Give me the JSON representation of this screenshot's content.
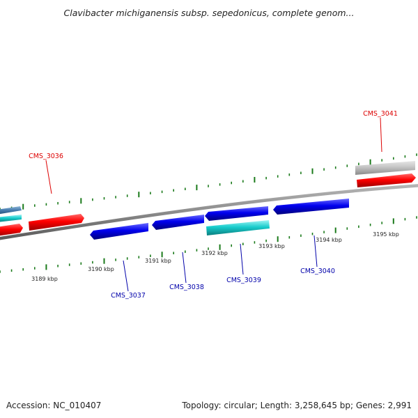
{
  "title": "Clavibacter michiganensis subsp. sepedonicus, complete genom...",
  "footer": {
    "accession": "Accession: NC_010407",
    "stats": "Topology: circular; Length: 3,258,645 bp; Genes: 2,991"
  },
  "colors": {
    "backbone": "#8c8c8c",
    "forward_gene": "#ff0000",
    "reverse_gene": "#0000ee",
    "rna_gene": "#00cccc",
    "pseudo_gene": "#c8c8c8",
    "dark_blue_gene": "#4a7fb0",
    "forward_label": "#dd0000",
    "reverse_label": "#0000aa",
    "tick": "#1a7a1a"
  },
  "scale": {
    "labels": [
      {
        "id": "3189",
        "text": "3189 kbp"
      },
      {
        "id": "3190",
        "text": "3190 kbp"
      },
      {
        "id": "3191",
        "text": "3191 kbp"
      },
      {
        "id": "3192",
        "text": "3192 kbp"
      },
      {
        "id": "3193",
        "text": "3193 kbp"
      },
      {
        "id": "3194",
        "text": "3194 kbp"
      },
      {
        "id": "3195",
        "text": "3195 kbp"
      }
    ]
  },
  "genes": [
    {
      "id": "CMS_3036",
      "label": "CMS_3036",
      "strand": "forward"
    },
    {
      "id": "CMS_3037",
      "label": "CMS_3037",
      "strand": "reverse"
    },
    {
      "id": "CMS_3038",
      "label": "CMS_3038",
      "strand": "reverse"
    },
    {
      "id": "CMS_3039",
      "label": "CMS_3039",
      "strand": "reverse"
    },
    {
      "id": "CMS_3040",
      "label": "CMS_3040",
      "strand": "reverse"
    },
    {
      "id": "CMS_3041",
      "label": "CMS_3041",
      "strand": "forward"
    }
  ]
}
